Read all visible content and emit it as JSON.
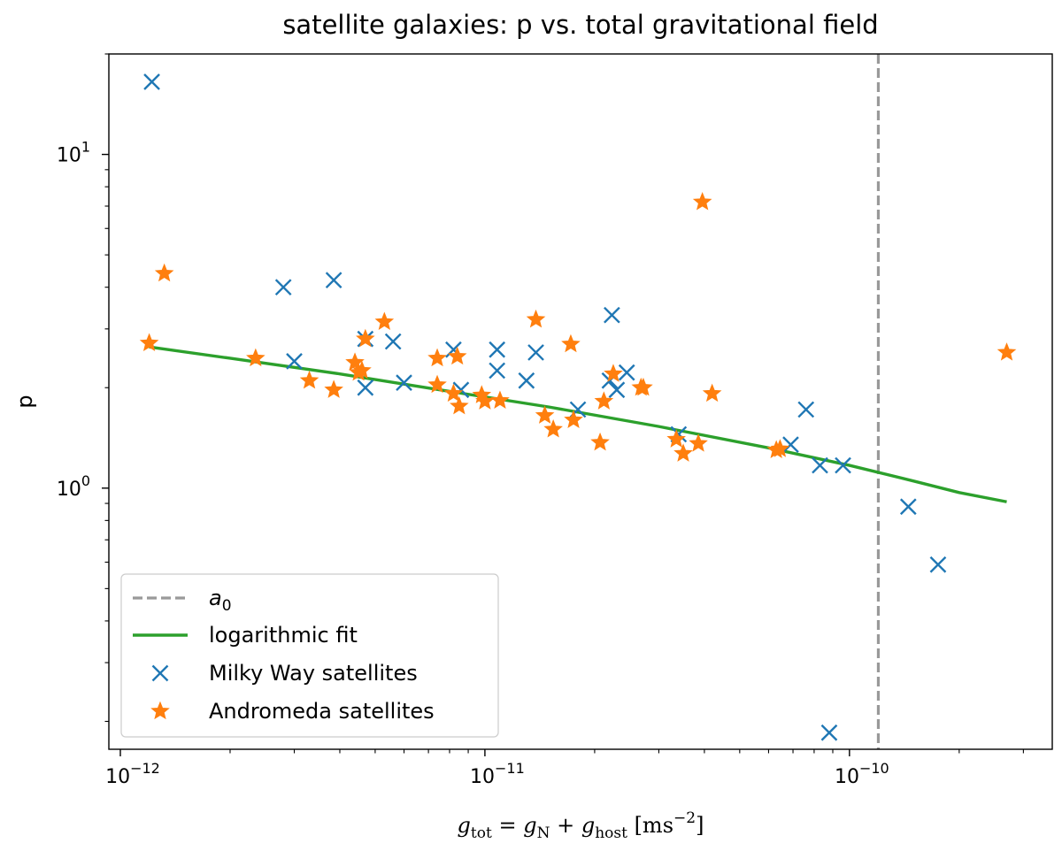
{
  "chart_data": {
    "type": "scatter",
    "title": "satellite galaxies: p vs. total gravitational field",
    "xlabel": "g_tot = g_N + g_host [ms^-2]",
    "xlabel_parts": {
      "g1": "g",
      "s1": "tot",
      "eq": " = ",
      "g2": "g",
      "s2": "N",
      "plus": " + ",
      "g3": "g",
      "s3": "host",
      "unit": " [ms",
      "exp": "−2",
      "close": "]"
    },
    "ylabel": "p",
    "x_scale": "log",
    "y_scale": "log",
    "xlim": [
      9.3e-13,
      3.6e-10
    ],
    "ylim": [
      0.165,
      20.0
    ],
    "grid": false,
    "x_ticks": [
      {
        "value": 1e-12,
        "base": "10",
        "exp": "−12"
      },
      {
        "value": 1e-11,
        "base": "10",
        "exp": "−11"
      },
      {
        "value": 1e-10,
        "base": "10",
        "exp": "−10"
      }
    ],
    "y_ticks": [
      {
        "value": 1.0,
        "base": "10",
        "exp": "0"
      },
      {
        "value": 10.0,
        "base": "10",
        "exp": "1"
      }
    ],
    "legend": {
      "placement": "lower-left",
      "entries": [
        {
          "label_main": "a",
          "label_sub": "0",
          "style": "dashed-line",
          "color": "#999999"
        },
        {
          "label": "logarithmic fit",
          "style": "line",
          "color": "#2ca02c"
        },
        {
          "label": "Milky Way satellites",
          "style": "x-marker",
          "color": "#1f77b4"
        },
        {
          "label": "Andromeda satellites",
          "style": "star-marker",
          "color": "#ff7f0e"
        }
      ]
    },
    "reference_line": {
      "name": "a0",
      "x": 1.2e-10,
      "color": "#999999",
      "style": "dashed"
    },
    "fit_line": {
      "name": "logarithmic fit",
      "color": "#2ca02c",
      "x": [
        1.2e-12,
        2e-12,
        4e-12,
        8e-12,
        1.5e-11,
        3e-11,
        6e-11,
        1e-10,
        1.5e-10,
        2e-10,
        2.7e-10
      ],
      "y": [
        2.65,
        2.45,
        2.2,
        1.95,
        1.75,
        1.53,
        1.32,
        1.17,
        1.05,
        0.97,
        0.91
      ]
    },
    "series": [
      {
        "name": "Milky Way satellites",
        "marker": "x",
        "color": "#1f77b4",
        "x": [
          1.22e-12,
          2.8e-12,
          3e-12,
          3.85e-12,
          4.7e-12,
          4.7e-12,
          5.6e-12,
          6e-12,
          8.2e-12,
          8.6e-12,
          1.08e-11,
          1.08e-11,
          1.3e-11,
          1.38e-11,
          1.8e-11,
          2.2e-11,
          2.23e-11,
          2.3e-11,
          2.45e-11,
          3.4e-11,
          6.9e-11,
          7.6e-11,
          8.3e-11,
          8.8e-11,
          9.6e-11,
          1.45e-10,
          1.75e-10
        ],
        "y": [
          16.5,
          4.0,
          2.4,
          4.2,
          2.8,
          2.0,
          2.75,
          2.07,
          2.6,
          1.97,
          2.6,
          2.25,
          2.1,
          2.55,
          1.72,
          2.1,
          3.3,
          1.97,
          2.22,
          1.45,
          1.35,
          1.72,
          1.17,
          0.185,
          1.17,
          0.88,
          0.59
        ]
      },
      {
        "name": "Andromeda satellites",
        "marker": "star",
        "color": "#ff7f0e",
        "x": [
          1.2e-12,
          1.32e-12,
          2.35e-12,
          3.3e-12,
          3.85e-12,
          4.4e-12,
          4.5e-12,
          4.6e-12,
          4.7e-12,
          5.3e-12,
          7.4e-12,
          7.4e-12,
          8.2e-12,
          8.4e-12,
          8.5e-12,
          9.8e-12,
          1e-11,
          1.1e-11,
          1.38e-11,
          1.46e-11,
          1.54e-11,
          1.72e-11,
          1.75e-11,
          2.07e-11,
          2.12e-11,
          2.25e-11,
          2.68e-11,
          2.72e-11,
          3.35e-11,
          3.5e-11,
          3.85e-11,
          3.95e-11,
          4.2e-11,
          6.3e-11,
          6.45e-11,
          2.7e-10
        ],
        "y": [
          2.72,
          4.4,
          2.45,
          2.1,
          1.97,
          2.38,
          2.22,
          2.25,
          2.8,
          3.15,
          2.45,
          2.04,
          1.92,
          2.48,
          1.76,
          1.9,
          1.82,
          1.83,
          3.2,
          1.65,
          1.5,
          2.7,
          1.6,
          1.37,
          1.82,
          2.2,
          2.0,
          2.0,
          1.4,
          1.27,
          1.36,
          7.2,
          1.92,
          1.3,
          1.31,
          2.55
        ]
      }
    ]
  }
}
